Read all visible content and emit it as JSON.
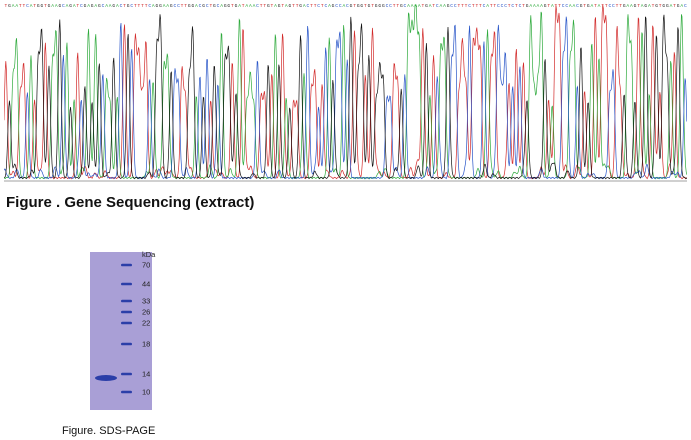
{
  "sequencing": {
    "caption": "Figure . Gene Sequencing (extract)",
    "bases": "TGAATTCATGGTGAAGCAGATCGAGAGCAAGACTGCTTTTCAGGAAGCCTTGGACGCTGCAGGTGATAAACTTGTAGTAGTTGACTTCTCAGCCACGTGGTGTGGGCCTTGCAAAATGATCAAGCCTTTCTTTCATTCCCTCTCTGAAAAGTATTCCAACGTGATATTCCTTGAAGTAGATGTGGATGACTGTCAGGATGTTGCTTCAGAGTGTGAAGTCAAATGCATGCCAACATTCCAGTTTTTTAAGAAGGGACAAAAGGTGGGTGAATTTTCTGGAGCCAATAAGGAAAAGCTTGAAGCCACCATTAATGAATTAGTCTAA",
    "trace_colors": {
      "A": "#2eaa3c",
      "C": "#2855c8",
      "G": "#111111",
      "T": "#d22a2a"
    }
  },
  "sds_page": {
    "caption": "Figure. SDS-PAGE",
    "unit": "kDa",
    "markers": [
      "70",
      "44",
      "33",
      "26",
      "22",
      "18",
      "14",
      "10"
    ],
    "gel_color": "#a99fd6",
    "band_color": "#2b3ea8"
  }
}
